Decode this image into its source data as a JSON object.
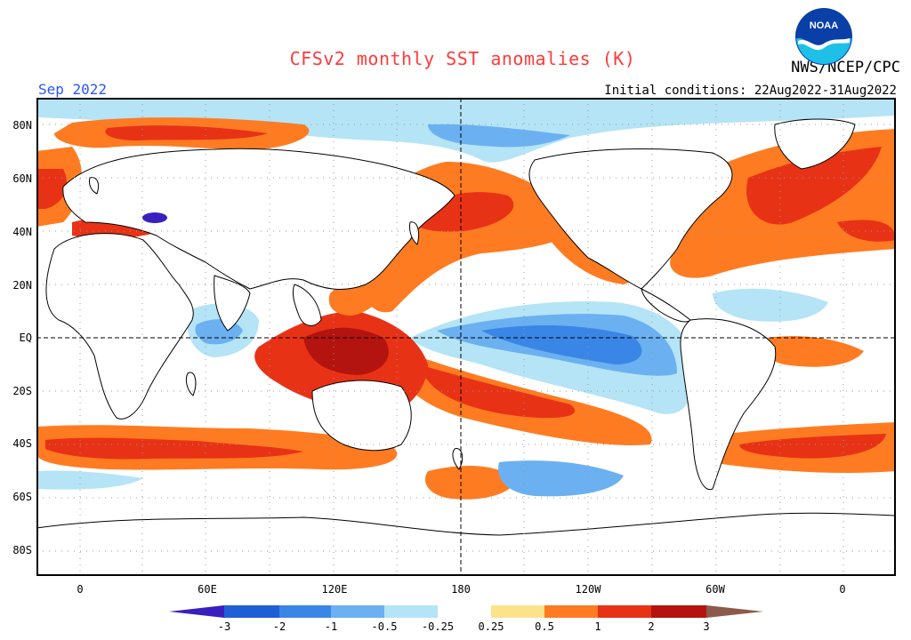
{
  "header": {
    "title": "CFSv2 monthly SST anomalies (K)",
    "org": "NWS/NCEP/CPC",
    "month": "Sep 2022",
    "initial_conditions": "Initial conditions: 22Aug2022-31Aug2022",
    "logo_text": "NOAA"
  },
  "axes": {
    "lat_labels": [
      "80N",
      "60N",
      "40N",
      "20N",
      "EQ",
      "20S",
      "40S",
      "60S",
      "80S"
    ],
    "lon_labels": [
      "0",
      "60E",
      "120E",
      "180",
      "120W",
      "60W",
      "0"
    ]
  },
  "colorbar": {
    "labels": [
      "-3",
      "-2",
      "-1",
      "-0.5",
      "-0.25",
      "0.25",
      "0.5",
      "1",
      "2",
      "3"
    ],
    "colors": {
      "below_-3": "#3a1fbf",
      "-3_-2": "#1f5fd6",
      "-2_-1": "#3a86e6",
      "-1_-0.5": "#6bb0f0",
      "-0.5_-0.25": "#b4e4f6",
      "-0.25_0.25": "#ffffff",
      "0.25_0.5": "#fbe38a",
      "0.5_1": "#ff7b21",
      "1_2": "#e83216",
      "2_3": "#b3140f",
      "above_3": "#8a5a4a"
    }
  },
  "colors": {
    "title": "#ff3b3b",
    "month": "#2a55ff",
    "land": "#ffffff",
    "grid": "#999999"
  }
}
